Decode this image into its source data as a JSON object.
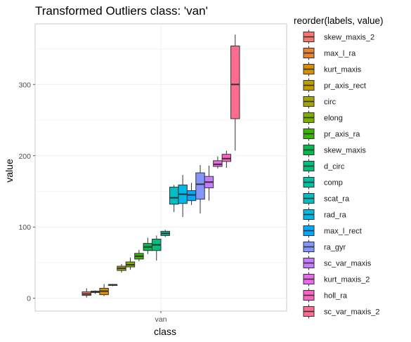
{
  "chart_data": {
    "type": "boxplot",
    "title": "Transformed Outliers class: 'van'",
    "xlabel": "class",
    "ylabel": "value",
    "categories": [
      "van"
    ],
    "ylim": [
      -18,
      385
    ],
    "y_ticks": [
      0,
      100,
      200,
      300
    ],
    "grid": true,
    "legend": {
      "title": "reorder(labels, value)",
      "position": "right"
    },
    "series": [
      {
        "name": "skew_maxis_2",
        "color": "#F8766D",
        "min": 1,
        "q1": 4,
        "median": 6,
        "q3": 9,
        "max": 14
      },
      {
        "name": "max_l_ra",
        "color": "#EA8331",
        "min": 6,
        "q1": 8,
        "median": 9,
        "q3": 10,
        "max": 11
      },
      {
        "name": "kurt_maxis",
        "color": "#D89000",
        "min": 3,
        "q1": 5,
        "median": 10,
        "q3": 14,
        "max": 20
      },
      {
        "name": "pr_axis_rect",
        "color": "#C09B00",
        "min": 17,
        "q1": 18,
        "median": 19,
        "q3": 19,
        "max": 19
      },
      {
        "name": "circ",
        "color": "#A3A500",
        "min": 36,
        "q1": 39,
        "median": 42,
        "q3": 45,
        "max": 48
      },
      {
        "name": "elong",
        "color": "#7CAE00",
        "min": 40,
        "q1": 44,
        "median": 47,
        "q3": 51,
        "max": 57
      },
      {
        "name": "pr_axis_ra",
        "color": "#39B600",
        "min": 52,
        "q1": 55,
        "median": 59,
        "q3": 63,
        "max": 68
      },
      {
        "name": "skew_maxis",
        "color": "#00BB4E",
        "min": 62,
        "q1": 67,
        "median": 72,
        "q3": 77,
        "max": 85
      },
      {
        "name": "d_circ",
        "color": "#00BF7D",
        "min": 53,
        "q1": 67,
        "median": 75,
        "q3": 83,
        "max": 88
      },
      {
        "name": "comp",
        "color": "#00C1A3",
        "min": 86,
        "q1": 88,
        "median": 91,
        "q3": 94,
        "max": 96
      },
      {
        "name": "scat_ra",
        "color": "#00BFC4",
        "min": 121,
        "q1": 132,
        "median": 141,
        "q3": 156,
        "max": 159
      },
      {
        "name": "rad_ra",
        "color": "#00B8E7",
        "min": 114,
        "q1": 133,
        "median": 146,
        "q3": 159,
        "max": 173
      },
      {
        "name": "max_l_rect",
        "color": "#00A9FF",
        "min": 131,
        "q1": 137,
        "median": 145,
        "q3": 151,
        "max": 162
      },
      {
        "name": "ra_gyr",
        "color": "#8494FF",
        "min": 119,
        "q1": 139,
        "median": 160,
        "q3": 176,
        "max": 187
      },
      {
        "name": "sc_var_maxis",
        "color": "#C77CFF",
        "min": 137,
        "q1": 155,
        "median": 163,
        "q3": 171,
        "max": 186
      },
      {
        "name": "kurt_maxis_2",
        "color": "#ED68ED",
        "min": 182,
        "q1": 185,
        "median": 188,
        "q3": 193,
        "max": 199
      },
      {
        "name": "holl_ra",
        "color": "#FF61C3",
        "min": 183,
        "q1": 192,
        "median": 196,
        "q3": 202,
        "max": 207
      },
      {
        "name": "sc_var_maxis_2",
        "color": "#FF6C91",
        "min": 207,
        "q1": 252,
        "median": 300,
        "q3": 354,
        "max": 370
      }
    ]
  }
}
